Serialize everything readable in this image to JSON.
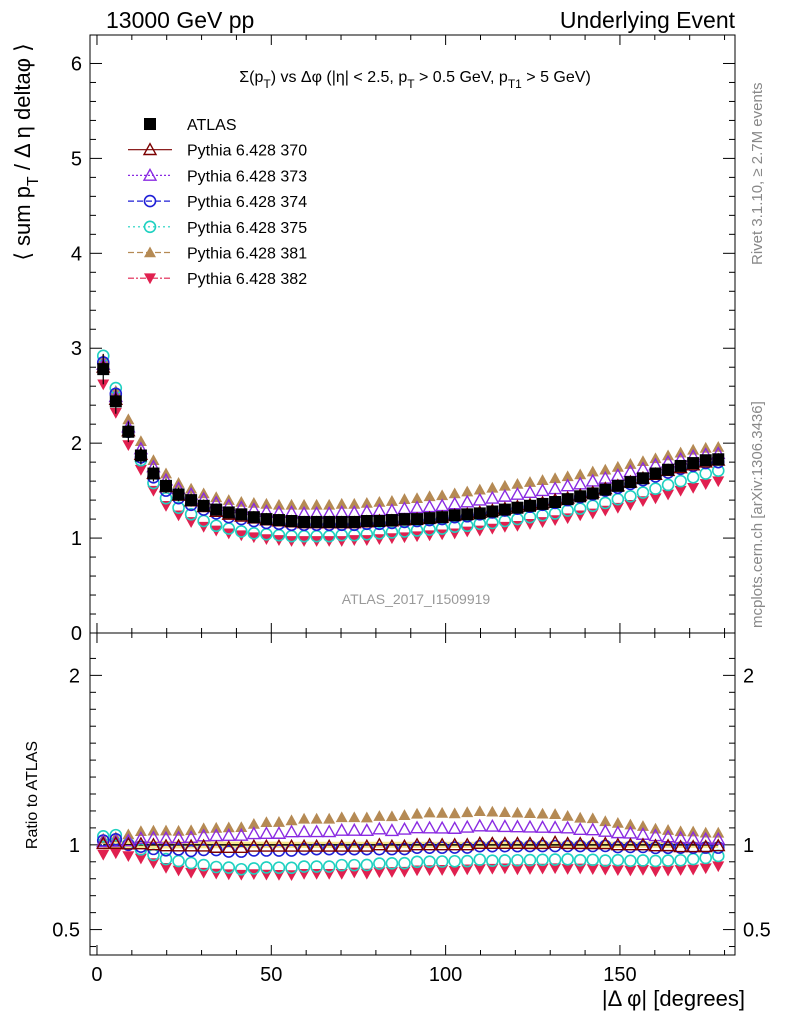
{
  "header": {
    "left": "13000 GeV pp",
    "right": "Underlying Event"
  },
  "side": {
    "rivet": "Rivet 3.1.10, ≥ 2.7M events",
    "mcplots": "mcplots.cern.ch [arXiv:1306.3436]"
  },
  "plot_title": "Σ(pT) vs Δφ (|η| < 2.5, pT > 0.5 GeV, pT1 > 5 GeV)",
  "watermark": "ATLAS_2017_I1509919",
  "chart_data": [
    {
      "type": "scatter",
      "panel": "main",
      "ylabel": "⟨ sum pT / Δ η deltaφ ⟩",
      "xlim": [
        -2,
        183
      ],
      "ylim": [
        0,
        6.3
      ],
      "yticks": [
        0,
        1,
        2,
        3,
        4,
        5,
        6
      ],
      "xticks": [
        0,
        50,
        100,
        150
      ],
      "x": [
        1.8,
        5.4,
        9,
        12.6,
        16.2,
        19.8,
        23.4,
        27,
        30.6,
        34.2,
        37.8,
        41.4,
        45,
        48.6,
        52.2,
        55.8,
        59.4,
        63,
        66.6,
        70.2,
        73.8,
        77.4,
        81,
        84.6,
        88.2,
        91.8,
        95.4,
        99,
        102.6,
        106.2,
        109.8,
        113.4,
        117,
        120.6,
        124.2,
        127.8,
        131.4,
        135,
        138.6,
        142.2,
        145.8,
        149.4,
        153,
        156.6,
        160.2,
        163.8,
        167.4,
        171,
        174.6,
        178.2
      ],
      "series": [
        {
          "name": "ATLAS",
          "marker": "square",
          "color": "#000000",
          "values": [
            2.78,
            2.44,
            2.12,
            1.87,
            1.68,
            1.55,
            1.46,
            1.4,
            1.34,
            1.3,
            1.27,
            1.25,
            1.22,
            1.2,
            1.19,
            1.18,
            1.17,
            1.17,
            1.17,
            1.17,
            1.17,
            1.18,
            1.18,
            1.19,
            1.2,
            1.2,
            1.21,
            1.22,
            1.24,
            1.25,
            1.26,
            1.28,
            1.3,
            1.32,
            1.34,
            1.36,
            1.38,
            1.41,
            1.44,
            1.47,
            1.51,
            1.55,
            1.59,
            1.63,
            1.68,
            1.72,
            1.76,
            1.79,
            1.82,
            1.83
          ]
        },
        {
          "name": "Pythia 6.428 370",
          "marker": "triangle-open",
          "color": "#7b0000",
          "values": [
            2.8,
            2.46,
            2.13,
            1.88,
            1.68,
            1.54,
            1.45,
            1.39,
            1.33,
            1.28,
            1.25,
            1.23,
            1.21,
            1.19,
            1.18,
            1.17,
            1.16,
            1.16,
            1.16,
            1.16,
            1.16,
            1.17,
            1.18,
            1.18,
            1.19,
            1.2,
            1.21,
            1.22,
            1.24,
            1.25,
            1.27,
            1.29,
            1.31,
            1.33,
            1.35,
            1.37,
            1.4,
            1.42,
            1.45,
            1.48,
            1.52,
            1.55,
            1.59,
            1.63,
            1.67,
            1.71,
            1.74,
            1.77,
            1.8,
            1.82
          ]
        },
        {
          "name": "Pythia 6.428 373",
          "marker": "triangle-open",
          "color": "#8a2be2",
          "values": [
            2.83,
            2.49,
            2.17,
            1.94,
            1.75,
            1.61,
            1.52,
            1.46,
            1.41,
            1.37,
            1.34,
            1.32,
            1.3,
            1.28,
            1.27,
            1.27,
            1.26,
            1.26,
            1.26,
            1.27,
            1.27,
            1.28,
            1.29,
            1.29,
            1.31,
            1.32,
            1.33,
            1.34,
            1.36,
            1.38,
            1.4,
            1.42,
            1.44,
            1.46,
            1.48,
            1.5,
            1.52,
            1.55,
            1.57,
            1.6,
            1.63,
            1.66,
            1.7,
            1.73,
            1.77,
            1.8,
            1.83,
            1.86,
            1.88,
            1.89
          ]
        },
        {
          "name": "Pythia 6.428 374",
          "marker": "circle-open",
          "color": "#1f1fd6",
          "values": [
            2.85,
            2.52,
            2.12,
            1.85,
            1.64,
            1.5,
            1.42,
            1.35,
            1.3,
            1.26,
            1.22,
            1.2,
            1.18,
            1.16,
            1.15,
            1.14,
            1.14,
            1.14,
            1.14,
            1.14,
            1.14,
            1.15,
            1.15,
            1.16,
            1.17,
            1.18,
            1.19,
            1.2,
            1.22,
            1.23,
            1.25,
            1.27,
            1.29,
            1.31,
            1.33,
            1.35,
            1.37,
            1.4,
            1.43,
            1.46,
            1.5,
            1.53,
            1.57,
            1.61,
            1.65,
            1.69,
            1.73,
            1.76,
            1.79,
            1.8
          ]
        },
        {
          "name": "Pythia 6.428 375",
          "marker": "circle-open",
          "color": "#1fd1c1",
          "values": [
            2.92,
            2.58,
            2.13,
            1.82,
            1.58,
            1.42,
            1.32,
            1.25,
            1.18,
            1.13,
            1.1,
            1.07,
            1.05,
            1.04,
            1.03,
            1.02,
            1.02,
            1.02,
            1.02,
            1.03,
            1.03,
            1.04,
            1.05,
            1.06,
            1.07,
            1.08,
            1.09,
            1.1,
            1.12,
            1.13,
            1.15,
            1.16,
            1.18,
            1.2,
            1.22,
            1.24,
            1.26,
            1.29,
            1.31,
            1.34,
            1.37,
            1.41,
            1.44,
            1.48,
            1.52,
            1.56,
            1.6,
            1.64,
            1.68,
            1.71
          ]
        },
        {
          "name": "Pythia 6.428 381",
          "marker": "triangle-filled",
          "color": "#b58a54",
          "values": [
            2.88,
            2.55,
            2.25,
            2.02,
            1.82,
            1.68,
            1.58,
            1.52,
            1.47,
            1.43,
            1.4,
            1.38,
            1.37,
            1.36,
            1.35,
            1.35,
            1.35,
            1.35,
            1.35,
            1.36,
            1.36,
            1.37,
            1.38,
            1.39,
            1.41,
            1.42,
            1.44,
            1.45,
            1.47,
            1.49,
            1.51,
            1.53,
            1.55,
            1.57,
            1.59,
            1.61,
            1.63,
            1.65,
            1.67,
            1.7,
            1.72,
            1.75,
            1.78,
            1.81,
            1.84,
            1.87,
            1.9,
            1.93,
            1.95,
            1.96
          ]
        },
        {
          "name": "Pythia 6.428 382",
          "marker": "triangle-down-filled",
          "color": "#e0204f",
          "values": [
            2.62,
            2.32,
            1.98,
            1.72,
            1.5,
            1.34,
            1.24,
            1.17,
            1.12,
            1.08,
            1.05,
            1.03,
            1.01,
            0.99,
            0.98,
            0.97,
            0.97,
            0.97,
            0.97,
            0.97,
            0.98,
            0.98,
            0.99,
            1.0,
            1.01,
            1.02,
            1.03,
            1.04,
            1.05,
            1.07,
            1.08,
            1.1,
            1.12,
            1.13,
            1.15,
            1.17,
            1.19,
            1.21,
            1.24,
            1.26,
            1.29,
            1.32,
            1.35,
            1.39,
            1.42,
            1.46,
            1.5,
            1.53,
            1.57,
            1.6
          ]
        }
      ]
    },
    {
      "type": "scatter",
      "panel": "ratio",
      "ylabel": "Ratio to ATLAS",
      "xlabel": "|Δ φ| [degrees]",
      "xlim": [
        -2,
        183
      ],
      "ylim": [
        0.35,
        2.25
      ],
      "yticks": [
        0.5,
        1,
        2
      ],
      "xticks": [
        0,
        50,
        100,
        150
      ]
    }
  ]
}
